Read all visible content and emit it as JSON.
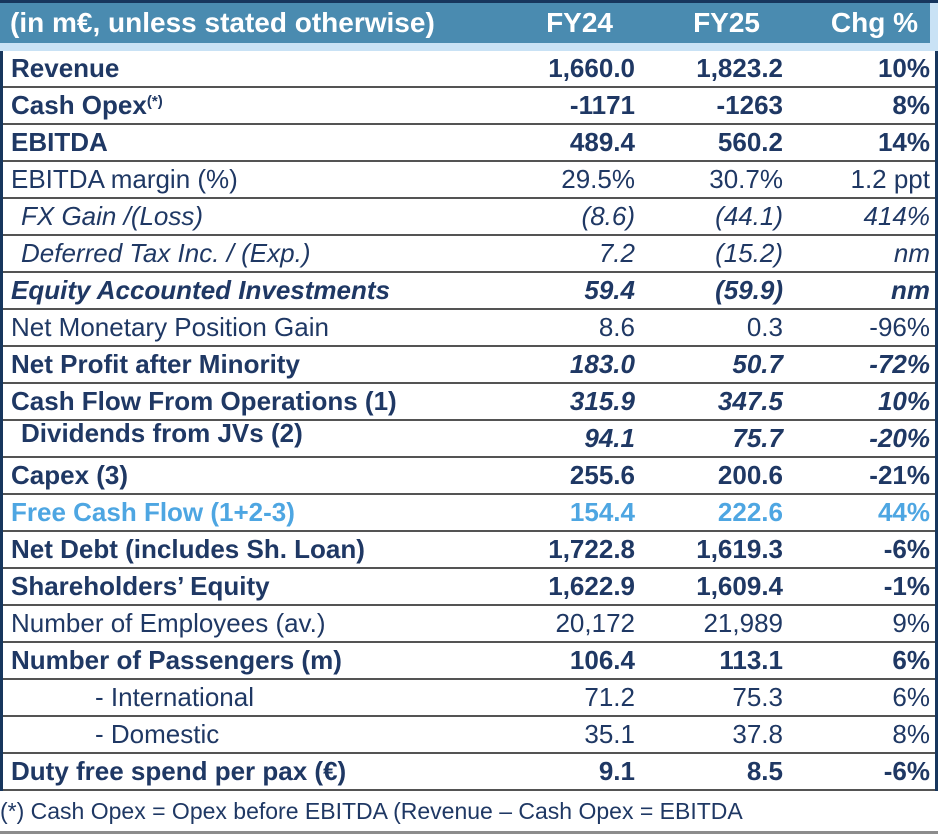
{
  "table": {
    "header": {
      "label_column": "(in m€, unless stated otherwise)",
      "columns": [
        "FY24",
        "FY25",
        "Chg %"
      ]
    },
    "rows": [
      {
        "label": "Revenue",
        "fy24": "1,660.0",
        "fy25": "1,823.2",
        "chg": "10%"
      },
      {
        "label": "Cash Opex",
        "sup": "(*)",
        "fy24": "-1171",
        "fy25": "-1263",
        "chg": "8%"
      },
      {
        "label": "EBITDA",
        "fy24": "489.4",
        "fy25": "560.2",
        "chg": "14%"
      },
      {
        "label": "EBITDA margin (%)",
        "fy24": "29.5%",
        "fy25": "30.7%",
        "chg": "1.2 ppt"
      },
      {
        "label": "FX Gain /(Loss)",
        "fy24": "(8.6)",
        "fy25": "(44.1)",
        "chg": "414%"
      },
      {
        "label": "Deferred Tax Inc. / (Exp.)",
        "fy24": "7.2",
        "fy25": "(15.2)",
        "chg": "nm"
      },
      {
        "label": "Equity Accounted Investments",
        "fy24": "59.4",
        "fy25": "(59.9)",
        "chg": "nm"
      },
      {
        "label": "Net Monetary Position Gain",
        "fy24": "8.6",
        "fy25": "0.3",
        "chg": "-96%"
      },
      {
        "label": "Net Profit after Minority",
        "fy24": "183.0",
        "fy25": "50.7",
        "chg": "-72%"
      },
      {
        "label": "Cash Flow From Operations (1)",
        "fy24": "315.9",
        "fy25": "347.5",
        "chg": "10%"
      },
      {
        "label": "Dividends from JVs (2)",
        "fy24": "94.1",
        "fy25": "75.7",
        "chg": "-20%"
      },
      {
        "label": "Capex (3)",
        "fy24": "255.6",
        "fy25": "200.6",
        "chg": "-21%"
      },
      {
        "label": "Free Cash Flow (1+2-3)",
        "fy24": "154.4",
        "fy25": "222.6",
        "chg": "44%"
      },
      {
        "label": "Net Debt (includes Sh. Loan)",
        "fy24": "1,722.8",
        "fy25": "1,619.3",
        "chg": "-6%"
      },
      {
        "label": "Shareholders’ Equity",
        "fy24": "1,622.9",
        "fy25": "1,609.4",
        "chg": "-1%"
      },
      {
        "label": "Number of Employees (av.)",
        "fy24": "20,172",
        "fy25": "21,989",
        "chg": "9%"
      },
      {
        "label": "Number of Passengers (m)",
        "fy24": "106.4",
        "fy25": "113.1",
        "chg": "6%"
      },
      {
        "label": "- International",
        "fy24": "71.2",
        "fy25": "75.3",
        "chg": "6%"
      },
      {
        "label": "- Domestic",
        "fy24": "35.1",
        "fy25": "37.8",
        "chg": "8%"
      },
      {
        "label": "Duty free spend per pax (€)",
        "fy24": "9.1",
        "fy25": "8.5",
        "chg": "-6%"
      }
    ]
  },
  "footnote": "(*) Cash Opex = Opex before EBITDA (Revenue – Cash Opex = EBITDA",
  "colors": {
    "header_bg": "#4A8BB0",
    "header_band": "#C9E2F5",
    "navy_text": "#1F3864",
    "free_cash_flow_blue": "#4EA6E2",
    "row_separator": "#545454"
  },
  "chart_data": {
    "type": "table",
    "title": "(in m€, unless stated otherwise)",
    "columns": [
      "(in m€, unless stated otherwise)",
      "FY24",
      "FY25",
      "Chg %"
    ],
    "rows": [
      [
        "Revenue",
        "1,660.0",
        "1,823.2",
        "10%"
      ],
      [
        "Cash Opex(*)",
        "-1171",
        "-1263",
        "8%"
      ],
      [
        "EBITDA",
        "489.4",
        "560.2",
        "14%"
      ],
      [
        "EBITDA margin (%)",
        "29.5%",
        "30.7%",
        "1.2 ppt"
      ],
      [
        "FX Gain /(Loss)",
        "(8.6)",
        "(44.1)",
        "414%"
      ],
      [
        "Deferred Tax Inc. / (Exp.)",
        "7.2",
        "(15.2)",
        "nm"
      ],
      [
        "Equity Accounted Investments",
        "59.4",
        "(59.9)",
        "nm"
      ],
      [
        "Net Monetary Position Gain",
        "8.6",
        "0.3",
        "-96%"
      ],
      [
        "Net Profit after Minority",
        "183.0",
        "50.7",
        "-72%"
      ],
      [
        "Cash Flow From Operations (1)",
        "315.9",
        "347.5",
        "10%"
      ],
      [
        "Dividends from JVs (2)",
        "94.1",
        "75.7",
        "-20%"
      ],
      [
        "Capex (3)",
        "255.6",
        "200.6",
        "-21%"
      ],
      [
        "Free Cash Flow (1+2-3)",
        "154.4",
        "222.6",
        "44%"
      ],
      [
        "Net Debt (includes Sh. Loan)",
        "1,722.8",
        "1,619.3",
        "-6%"
      ],
      [
        "Shareholders’ Equity",
        "1,622.9",
        "1,609.4",
        "-1%"
      ],
      [
        "Number of Employees (av.)",
        "20,172",
        "21,989",
        "9%"
      ],
      [
        "Number of Passengers (m)",
        "106.4",
        "113.1",
        "6%"
      ],
      [
        "- International",
        "71.2",
        "75.3",
        "6%"
      ],
      [
        "- Domestic",
        "35.1",
        "37.8",
        "8%"
      ],
      [
        "Duty free spend per pax (€)",
        "9.1",
        "8.5",
        "-6%"
      ]
    ],
    "footnote": "(*) Cash Opex = Opex before EBITDA (Revenue – Cash Opex = EBITDA"
  }
}
